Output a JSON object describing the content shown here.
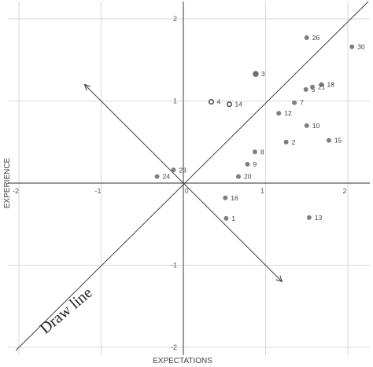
{
  "chart_data": {
    "type": "scatter",
    "xlabel": "EXPECTATIONS",
    "ylabel": "EXPERIENCE",
    "xlim": [
      -2.1,
      2.25
    ],
    "ylim": [
      -2.1,
      2.1
    ],
    "xticks": [
      -2,
      -1,
      0,
      1,
      2
    ],
    "yticks": [
      -2,
      -1,
      0,
      1,
      2
    ],
    "x_tick_labels": [
      "-2",
      "-1",
      "0",
      "1",
      "2"
    ],
    "y_tick_labels": [
      "-2",
      "-1",
      "0",
      "1",
      "2"
    ],
    "grid": true,
    "points": [
      {
        "label": "1",
        "x": 0.52,
        "y": -0.43,
        "style": "filled"
      },
      {
        "label": "2",
        "x": 1.25,
        "y": 0.5,
        "style": "filled"
      },
      {
        "label": "3",
        "x": 0.88,
        "y": 1.33,
        "style": "filled-large"
      },
      {
        "label": "4",
        "x": 0.34,
        "y": 0.99,
        "style": "hollow"
      },
      {
        "label": "5",
        "x": 1.49,
        "y": 1.14,
        "style": "filled"
      },
      {
        "label": "7",
        "x": 1.35,
        "y": 0.98,
        "style": "filled"
      },
      {
        "label": "8",
        "x": 0.87,
        "y": 0.38,
        "style": "filled"
      },
      {
        "label": "9",
        "x": 0.78,
        "y": 0.23,
        "style": "filled"
      },
      {
        "label": "10",
        "x": 1.5,
        "y": 0.7,
        "style": "filled"
      },
      {
        "label": "12",
        "x": 1.16,
        "y": 0.85,
        "style": "filled"
      },
      {
        "label": "13",
        "x": 1.53,
        "y": -0.42,
        "style": "filled"
      },
      {
        "label": "14",
        "x": 0.56,
        "y": 0.96,
        "style": "hollow"
      },
      {
        "label": "15",
        "x": 1.77,
        "y": 0.52,
        "style": "filled"
      },
      {
        "label": "16",
        "x": 0.51,
        "y": -0.18,
        "style": "filled"
      },
      {
        "label": "18",
        "x": 1.68,
        "y": 1.2,
        "style": "filled"
      },
      {
        "label": "20",
        "x": 0.67,
        "y": 0.08,
        "style": "filled"
      },
      {
        "label": "21",
        "x": 1.57,
        "y": 1.17,
        "style": "filled"
      },
      {
        "label": "23",
        "x": -0.12,
        "y": 0.16,
        "style": "filled"
      },
      {
        "label": "24",
        "x": -0.32,
        "y": 0.08,
        "style": "filled"
      },
      {
        "label": "26",
        "x": 1.5,
        "y": 1.77,
        "style": "filled"
      },
      {
        "label": "30",
        "x": 2.05,
        "y": 1.66,
        "style": "filled"
      }
    ],
    "diagonal_line": {
      "from": [
        -2.1,
        -2.1
      ],
      "to": [
        2.1,
        2.1
      ]
    },
    "perpendicular_arrow": {
      "from": [
        -1.2,
        1.2
      ],
      "to": [
        1.2,
        -1.2
      ],
      "double_headed": true
    },
    "annotation": "Draw line"
  },
  "colors": {
    "grid": "#d9d9d9",
    "axis": "#595959",
    "point": "#7f7f7f",
    "text": "#404040"
  }
}
